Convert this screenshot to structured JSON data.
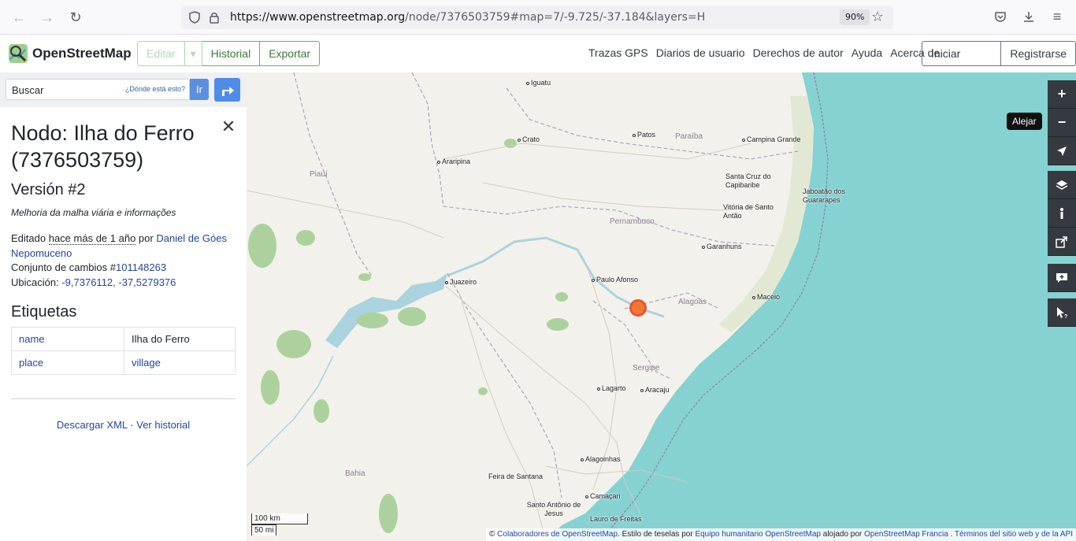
{
  "browser": {
    "url_host": "https://www.openstreetmap.org",
    "url_rest": "/node/7376503759#map=7/-9.725/-37.184&layers=H",
    "zoom": "90%"
  },
  "header": {
    "logo_text": "OpenStreetMap",
    "edit_label": "Editar",
    "history_label": "Historial",
    "export_label": "Exportar",
    "links": [
      "Trazas GPS",
      "Diarios de usuario",
      "Derechos de autor",
      "Ayuda",
      "Acerca de"
    ],
    "login_label": "Iniciar sesión",
    "register_label": "Registrarse"
  },
  "search": {
    "placeholder": "Buscar",
    "where_link": "¿Dónde está esto?",
    "go_label": "Ir"
  },
  "node": {
    "title": "Nodo: Ilha do Ferro (7376503759)",
    "version": "Versión #2",
    "comment": "Melhoria da malha viária e informações",
    "edited_prefix": "Editado",
    "edited_when": "hace más de 1 año",
    "edited_by": "por",
    "author": "Daniel de Góes Nepomuceno",
    "changeset_label": "Conjunto de cambios #",
    "changeset_id": "101148263",
    "location_label": "Ubicación:",
    "location_value": "-9,7376112, -37,5279376",
    "tags_heading": "Etiquetas",
    "tags": [
      {
        "key": "name",
        "value": "Ilha do Ferro"
      },
      {
        "key": "place",
        "value": "village"
      }
    ],
    "download_xml": "Descargar XML",
    "separator": "·",
    "view_history": "Ver historial"
  },
  "map": {
    "tooltip": "Alejar",
    "scale_km": "100 km",
    "scale_mi": "50 mi",
    "attribution": {
      "prefix": "©",
      "contributors": "Colaboradores de OpenStreetMap",
      "style_text": ". Estilo de teselas por",
      "hot": "Equipo humanitario OpenStreetMap",
      "hosted": "alojado por",
      "france": "OpenStreetMap Francia",
      "dot": ".",
      "terms": "Términos del sitio web y de la API"
    },
    "cities": [
      {
        "name": "Iguatu",
        "id": "iguatu"
      },
      {
        "name": "Crato",
        "id": "crato"
      },
      {
        "name": "Patos",
        "id": "patos"
      },
      {
        "name": "Campina Grande",
        "id": "campina"
      },
      {
        "name": "Araripina",
        "id": "araripina"
      },
      {
        "name": "Santa Cruz do Capibaribe",
        "id": "santacruz"
      },
      {
        "name": "Jaboatão dos Guararapes",
        "id": "jaboatao"
      },
      {
        "name": "Vitória de Santo Antão",
        "id": "vitoria"
      },
      {
        "name": "Garanhuns",
        "id": "garanhuns"
      },
      {
        "name": "Juazeiro",
        "id": "juazeiro"
      },
      {
        "name": "Paulo Afonso",
        "id": "pauloafonso"
      },
      {
        "name": "Maceió",
        "id": "maceio"
      },
      {
        "name": "Lagarto",
        "id": "lagarto"
      },
      {
        "name": "Aracaju",
        "id": "aracaju"
      },
      {
        "name": "Alagoinhas",
        "id": "alagoinhas"
      },
      {
        "name": "Feira de Santana",
        "id": "feira"
      },
      {
        "name": "Camaçari",
        "id": "camacari"
      },
      {
        "name": "Santo Antônio de Jesus",
        "id": "santoantonio"
      },
      {
        "name": "Lauro de Freitas",
        "id": "lauro"
      }
    ],
    "states": [
      "Paraíba",
      "Piauí",
      "Pernambuco",
      "Alagoas",
      "Sergipe",
      "Bahia"
    ]
  }
}
